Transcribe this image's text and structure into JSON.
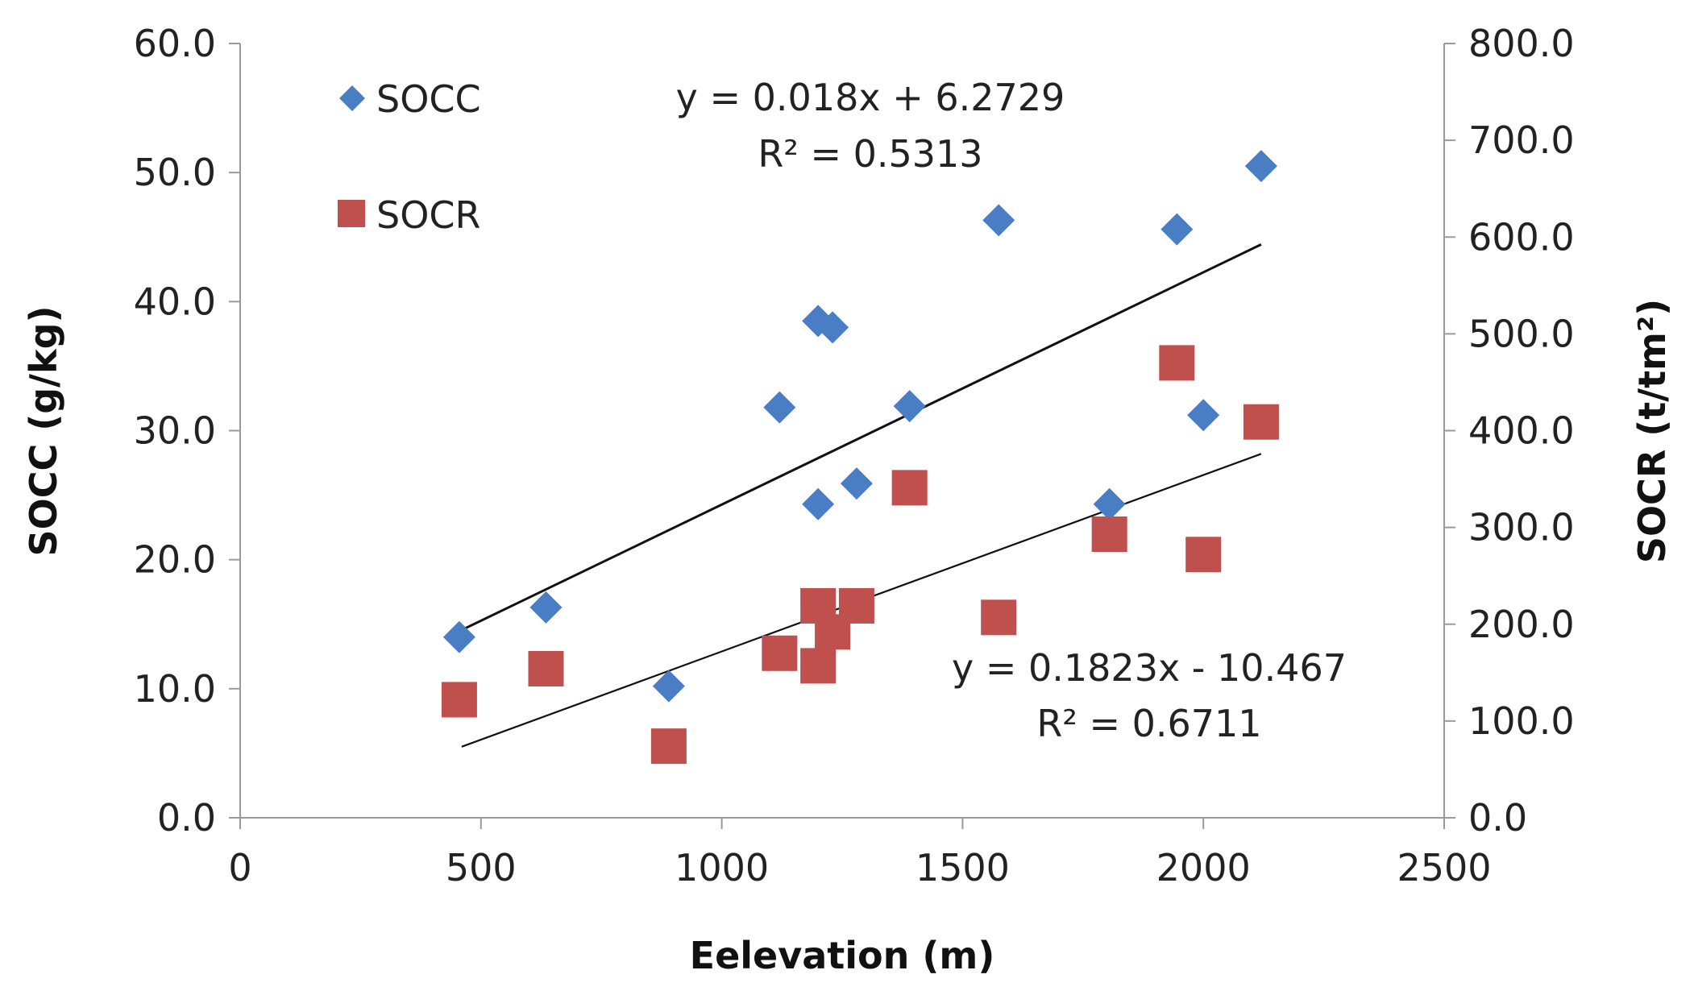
{
  "chart_data": {
    "type": "scatter",
    "title": "",
    "xlabel": "Eelevation (m)",
    "ylabel_left": "SOCC (g/kg)",
    "ylabel_right": "SOCR (t/tm²)",
    "xlim": [
      0,
      2500
    ],
    "ylim_left": [
      0,
      60
    ],
    "ylim_right": [
      0,
      800
    ],
    "x_ticks": [
      "0",
      "500",
      "1000",
      "1500",
      "2000",
      "2500"
    ],
    "y_left_ticks": [
      "0.0",
      "10.0",
      "20.0",
      "30.0",
      "40.0",
      "50.0",
      "60.0"
    ],
    "y_right_ticks": [
      "0.0",
      "100.0",
      "200.0",
      "300.0",
      "400.0",
      "500.0",
      "600.0",
      "700.0",
      "800.0"
    ],
    "grid": false,
    "legend_position": "top-left",
    "series": [
      {
        "name": "SOCC",
        "axis": "left",
        "marker": "diamond",
        "color": "#4A7EC4",
        "points": [
          {
            "x": 455,
            "y": 14.0
          },
          {
            "x": 635,
            "y": 16.3
          },
          {
            "x": 890,
            "y": 10.2
          },
          {
            "x": 1120,
            "y": 31.8
          },
          {
            "x": 1200,
            "y": 38.5
          },
          {
            "x": 1230,
            "y": 38.0
          },
          {
            "x": 1200,
            "y": 24.3
          },
          {
            "x": 1280,
            "y": 25.9
          },
          {
            "x": 1390,
            "y": 31.9
          },
          {
            "x": 1575,
            "y": 46.3
          },
          {
            "x": 1805,
            "y": 24.3
          },
          {
            "x": 1945,
            "y": 45.6
          },
          {
            "x": 2000,
            "y": 31.2
          },
          {
            "x": 2120,
            "y": 50.5
          }
        ]
      },
      {
        "name": "SOCR",
        "axis": "right",
        "marker": "square",
        "color": "#C0504D",
        "points": [
          {
            "x": 455,
            "y": 122
          },
          {
            "x": 635,
            "y": 154
          },
          {
            "x": 890,
            "y": 74
          },
          {
            "x": 1120,
            "y": 170
          },
          {
            "x": 1200,
            "y": 157
          },
          {
            "x": 1230,
            "y": 192
          },
          {
            "x": 1200,
            "y": 219
          },
          {
            "x": 1280,
            "y": 219
          },
          {
            "x": 1390,
            "y": 341
          },
          {
            "x": 1575,
            "y": 207
          },
          {
            "x": 1805,
            "y": 293
          },
          {
            "x": 1945,
            "y": 470
          },
          {
            "x": 2000,
            "y": 272
          },
          {
            "x": 2120,
            "y": 409
          }
        ]
      }
    ],
    "trendlines": [
      {
        "series": "SOCC",
        "axis": "left",
        "x": [
          460,
          2120
        ],
        "y": [
          14.55,
          44.43
        ],
        "equation": "y = 0.018x + 6.2729",
        "r2": "R² = 0.5313"
      },
      {
        "series": "SOCR",
        "axis": "right",
        "x": [
          460,
          2120
        ],
        "y": [
          73.4,
          376.0
        ],
        "equation": "y = 0.1823x - 10.467",
        "r2": "R² = 0.6711"
      }
    ]
  }
}
